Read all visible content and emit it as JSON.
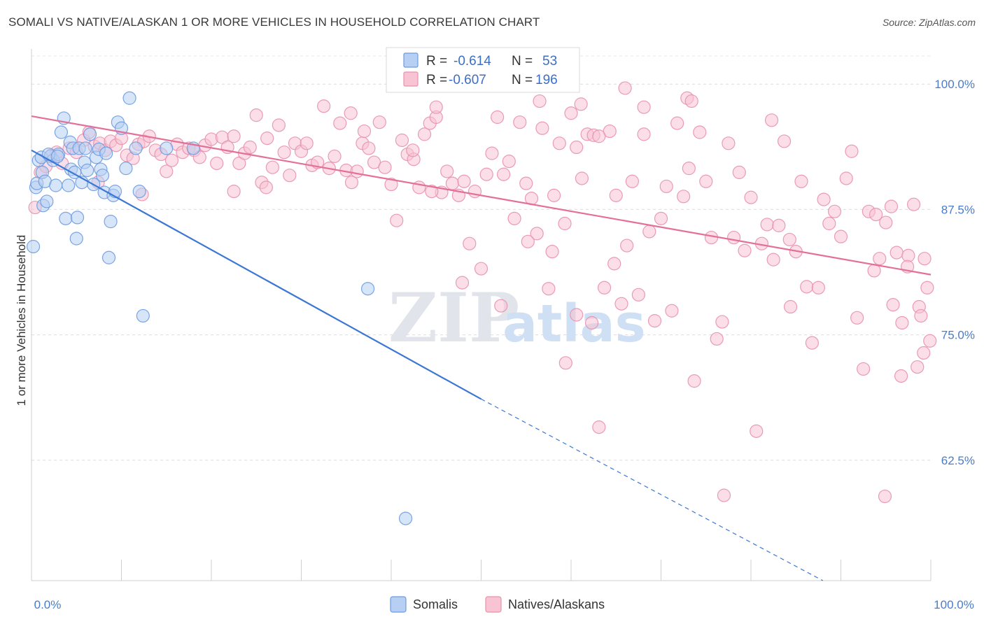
{
  "title": "SOMALI VS NATIVE/ALASKAN 1 OR MORE VEHICLES IN HOUSEHOLD CORRELATION CHART",
  "source": "Source: ZipAtlas.com",
  "watermark": {
    "zip": "ZIP",
    "atlas": "atlas"
  },
  "legend": {
    "r_label": "R =",
    "n_label": "N =",
    "rows": [
      {
        "name": "Somalis",
        "r": "-0.614",
        "n": "53",
        "fill": "#b7cff3",
        "stroke": "#6d9be0"
      },
      {
        "name": "Natives/Alaskans",
        "r": "-0.607",
        "n": "196",
        "fill": "#f8c3d3",
        "stroke": "#e891ae"
      }
    ]
  },
  "chart_data": {
    "type": "scatter",
    "xlabel": "",
    "ylabel": "1 or more Vehicles in Household",
    "xlim": [
      0,
      100
    ],
    "ylim": [
      50.5,
      103.5
    ],
    "x_tick_labels": [
      {
        "value": 0,
        "label": "0.0%"
      },
      {
        "value": 100,
        "label": "100.0%"
      }
    ],
    "y_tick_labels": [
      {
        "value": 100,
        "label": "100.0%"
      },
      {
        "value": 87.5,
        "label": "87.5%"
      },
      {
        "value": 75,
        "label": "75.0%"
      },
      {
        "value": 62.5,
        "label": "62.5%"
      }
    ],
    "grid": true,
    "series": [
      {
        "name": "Somalis",
        "color": "#6d9be0",
        "fill": "#b7cff3",
        "line_color": "#3b77d4",
        "trend": {
          "x0": 0,
          "y0": 93.4,
          "x1": 50,
          "y1": 68.6,
          "dash_to_x": 88,
          "dash_to_y": 50.5
        },
        "points": [
          [
            0.2,
            83.8
          ],
          [
            0.5,
            89.7
          ],
          [
            0.6,
            90.1
          ],
          [
            0.8,
            92.4
          ],
          [
            1.1,
            92.7
          ],
          [
            1.2,
            91.2
          ],
          [
            1.3,
            87.9
          ],
          [
            1.5,
            90.3
          ],
          [
            1.7,
            88.3
          ],
          [
            2.1,
            92.8
          ],
          [
            2.4,
            92.4
          ],
          [
            2.7,
            89.9
          ],
          [
            3.0,
            93.0
          ],
          [
            3.3,
            95.2
          ],
          [
            3.6,
            96.6
          ],
          [
            3.8,
            86.6
          ],
          [
            4.1,
            89.9
          ],
          [
            4.3,
            94.2
          ],
          [
            4.4,
            91.5
          ],
          [
            4.6,
            93.6
          ],
          [
            4.8,
            91.2
          ],
          [
            5.0,
            84.6
          ],
          [
            5.1,
            86.7
          ],
          [
            5.3,
            93.6
          ],
          [
            5.6,
            90.2
          ],
          [
            5.9,
            92.2
          ],
          [
            6.0,
            93.6
          ],
          [
            6.2,
            91.4
          ],
          [
            6.5,
            95.0
          ],
          [
            6.9,
            90.0
          ],
          [
            7.2,
            92.7
          ],
          [
            7.5,
            93.5
          ],
          [
            7.7,
            91.5
          ],
          [
            7.9,
            90.9
          ],
          [
            8.1,
            89.2
          ],
          [
            8.3,
            93.1
          ],
          [
            8.6,
            82.7
          ],
          [
            8.8,
            86.3
          ],
          [
            9.1,
            88.9
          ],
          [
            9.3,
            89.3
          ],
          [
            9.6,
            96.2
          ],
          [
            10.0,
            95.6
          ],
          [
            10.5,
            91.6
          ],
          [
            10.9,
            98.6
          ],
          [
            12.0,
            89.3
          ],
          [
            12.4,
            76.9
          ],
          [
            15.0,
            93.6
          ],
          [
            18.0,
            93.6
          ],
          [
            37.4,
            79.6
          ],
          [
            41.6,
            56.7
          ],
          [
            1.9,
            93.0
          ],
          [
            2.9,
            92.8
          ],
          [
            11.6,
            93.6
          ]
        ]
      },
      {
        "name": "Natives/Alaskans",
        "color": "#e891ae",
        "fill": "#f8c3d3",
        "line_color": "#e46f98",
        "trend": {
          "x0": 0,
          "y0": 96.8,
          "x1": 100,
          "y1": 81.0
        },
        "points": [
          [
            0.4,
            87.7
          ],
          [
            1.0,
            91.2
          ],
          [
            1.6,
            91.8
          ],
          [
            2.2,
            92.9
          ],
          [
            2.8,
            93.2
          ],
          [
            3.4,
            92.1
          ],
          [
            4.2,
            93.6
          ],
          [
            5.0,
            93.2
          ],
          [
            5.8,
            94.4
          ],
          [
            6.4,
            95.2
          ],
          [
            7.0,
            93.8
          ],
          [
            7.6,
            94.1
          ],
          [
            8.2,
            93.4
          ],
          [
            8.8,
            94.3
          ],
          [
            9.4,
            93.9
          ],
          [
            10.0,
            94.6
          ],
          [
            10.6,
            92.9
          ],
          [
            11.3,
            92.6
          ],
          [
            11.9,
            94.0
          ],
          [
            12.5,
            94.3
          ],
          [
            13.1,
            94.8
          ],
          [
            13.8,
            93.4
          ],
          [
            14.4,
            93.0
          ],
          [
            15.0,
            91.3
          ],
          [
            15.6,
            92.4
          ],
          [
            16.2,
            94.0
          ],
          [
            16.8,
            93.2
          ],
          [
            17.5,
            93.6
          ],
          [
            18.1,
            93.4
          ],
          [
            18.7,
            92.7
          ],
          [
            19.3,
            93.9
          ],
          [
            20.0,
            94.5
          ],
          [
            20.6,
            92.1
          ],
          [
            21.2,
            94.7
          ],
          [
            21.8,
            93.7
          ],
          [
            22.5,
            94.8
          ],
          [
            23.1,
            92.1
          ],
          [
            23.7,
            93.1
          ],
          [
            24.3,
            93.7
          ],
          [
            25.0,
            96.9
          ],
          [
            25.6,
            90.2
          ],
          [
            26.2,
            94.6
          ],
          [
            26.8,
            91.7
          ],
          [
            27.5,
            95.9
          ],
          [
            28.1,
            93.2
          ],
          [
            28.7,
            90.9
          ],
          [
            29.3,
            94.1
          ],
          [
            30.0,
            93.3
          ],
          [
            30.6,
            94.1
          ],
          [
            31.2,
            91.9
          ],
          [
            31.8,
            92.2
          ],
          [
            32.5,
            97.8
          ],
          [
            33.1,
            91.6
          ],
          [
            33.7,
            92.8
          ],
          [
            34.3,
            96.1
          ],
          [
            35.0,
            91.4
          ],
          [
            35.6,
            90.2
          ],
          [
            36.2,
            91.3
          ],
          [
            36.8,
            94.1
          ],
          [
            37.5,
            93.6
          ],
          [
            38.1,
            92.2
          ],
          [
            38.7,
            96.2
          ],
          [
            39.3,
            91.7
          ],
          [
            40.0,
            90.0
          ],
          [
            40.6,
            86.4
          ],
          [
            41.2,
            94.4
          ],
          [
            41.8,
            93.0
          ],
          [
            42.5,
            92.5
          ],
          [
            43.1,
            89.7
          ],
          [
            43.7,
            95.0
          ],
          [
            44.3,
            96.1
          ],
          [
            45.0,
            96.7
          ],
          [
            45.6,
            89.2
          ],
          [
            46.2,
            91.3
          ],
          [
            46.8,
            90.1
          ],
          [
            47.5,
            88.9
          ],
          [
            48.1,
            90.3
          ],
          [
            48.7,
            84.1
          ],
          [
            49.3,
            89.3
          ],
          [
            50.0,
            81.6
          ],
          [
            50.6,
            91.0
          ],
          [
            51.2,
            93.1
          ],
          [
            51.8,
            96.7
          ],
          [
            52.5,
            91.0
          ],
          [
            53.1,
            92.3
          ],
          [
            53.7,
            86.6
          ],
          [
            54.3,
            96.2
          ],
          [
            55.0,
            90.1
          ],
          [
            55.6,
            88.6
          ],
          [
            56.2,
            85.1
          ],
          [
            56.8,
            95.6
          ],
          [
            57.5,
            79.6
          ],
          [
            58.1,
            88.9
          ],
          [
            58.7,
            94.1
          ],
          [
            59.3,
            86.1
          ],
          [
            60.0,
            97.1
          ],
          [
            60.6,
            93.7
          ],
          [
            61.2,
            90.6
          ],
          [
            61.8,
            95.0
          ],
          [
            62.5,
            94.9
          ],
          [
            63.1,
            65.8
          ],
          [
            63.7,
            79.7
          ],
          [
            64.3,
            95.3
          ],
          [
            65.0,
            88.9
          ],
          [
            65.6,
            78.1
          ],
          [
            66.2,
            83.9
          ],
          [
            66.8,
            90.3
          ],
          [
            67.5,
            79.0
          ],
          [
            68.1,
            95.0
          ],
          [
            68.7,
            85.3
          ],
          [
            69.3,
            76.4
          ],
          [
            70.0,
            86.6
          ],
          [
            70.6,
            89.8
          ],
          [
            71.2,
            77.4
          ],
          [
            71.8,
            96.1
          ],
          [
            72.5,
            88.8
          ],
          [
            73.1,
            91.6
          ],
          [
            73.7,
            70.4
          ],
          [
            74.3,
            95.2
          ],
          [
            75.0,
            90.3
          ],
          [
            75.6,
            84.7
          ],
          [
            76.2,
            74.6
          ],
          [
            76.8,
            76.3
          ],
          [
            77.5,
            94.1
          ],
          [
            78.1,
            84.7
          ],
          [
            78.7,
            91.2
          ],
          [
            79.3,
            83.4
          ],
          [
            80.0,
            88.7
          ],
          [
            80.6,
            65.4
          ],
          [
            81.2,
            84.1
          ],
          [
            81.8,
            86.0
          ],
          [
            82.5,
            82.5
          ],
          [
            83.1,
            85.9
          ],
          [
            83.7,
            94.3
          ],
          [
            84.3,
            84.5
          ],
          [
            85.0,
            83.3
          ],
          [
            85.6,
            90.3
          ],
          [
            86.2,
            79.8
          ],
          [
            86.8,
            74.2
          ],
          [
            87.5,
            79.7
          ],
          [
            88.1,
            88.5
          ],
          [
            88.7,
            86.1
          ],
          [
            89.3,
            87.3
          ],
          [
            90.0,
            84.8
          ],
          [
            90.6,
            90.6
          ],
          [
            91.2,
            93.3
          ],
          [
            91.8,
            76.7
          ],
          [
            92.5,
            71.6
          ],
          [
            93.1,
            87.3
          ],
          [
            93.7,
            81.4
          ],
          [
            94.3,
            82.6
          ],
          [
            95.0,
            86.2
          ],
          [
            95.6,
            87.8
          ],
          [
            96.2,
            83.2
          ],
          [
            96.8,
            76.2
          ],
          [
            97.5,
            82.9
          ],
          [
            98.1,
            88.0
          ],
          [
            98.7,
            77.8
          ],
          [
            99.3,
            82.6
          ],
          [
            99.9,
            74.4
          ],
          [
            93.9,
            87.0
          ],
          [
            94.9,
            58.9
          ],
          [
            96.7,
            70.9
          ],
          [
            97.4,
            81.8
          ],
          [
            98.9,
            76.9
          ],
          [
            99.6,
            79.7
          ],
          [
            98.5,
            71.8
          ],
          [
            77.0,
            59.0
          ],
          [
            62.3,
            76.2
          ],
          [
            59.4,
            72.2
          ],
          [
            64.8,
            82.1
          ],
          [
            84.4,
            77.8
          ],
          [
            72.9,
            98.6
          ],
          [
            66.0,
            99.6
          ],
          [
            82.3,
            96.4
          ],
          [
            73.4,
            98.3
          ],
          [
            60.6,
            77.0
          ],
          [
            68.1,
            97.7
          ],
          [
            63.1,
            94.8
          ],
          [
            56.5,
            98.3
          ],
          [
            45.0,
            97.7
          ],
          [
            44.5,
            89.3
          ],
          [
            37.0,
            95.3
          ],
          [
            26.1,
            89.7
          ],
          [
            22.5,
            89.3
          ],
          [
            12.3,
            89.0
          ],
          [
            7.4,
            90.2
          ],
          [
            35.5,
            97.1
          ],
          [
            55.2,
            84.3
          ],
          [
            57.9,
            83.3
          ],
          [
            42.4,
            93.4
          ],
          [
            47.9,
            80.2
          ],
          [
            52.2,
            77.9
          ],
          [
            61.1,
            98.0
          ],
          [
            95.8,
            78.0
          ],
          [
            99.2,
            73.2
          ]
        ]
      }
    ]
  },
  "bottom_legend": [
    {
      "name": "Somalis",
      "fill": "#b7cff3",
      "stroke": "#6d9be0"
    },
    {
      "name": "Natives/Alaskans",
      "fill": "#f8c3d3",
      "stroke": "#e891ae"
    }
  ]
}
